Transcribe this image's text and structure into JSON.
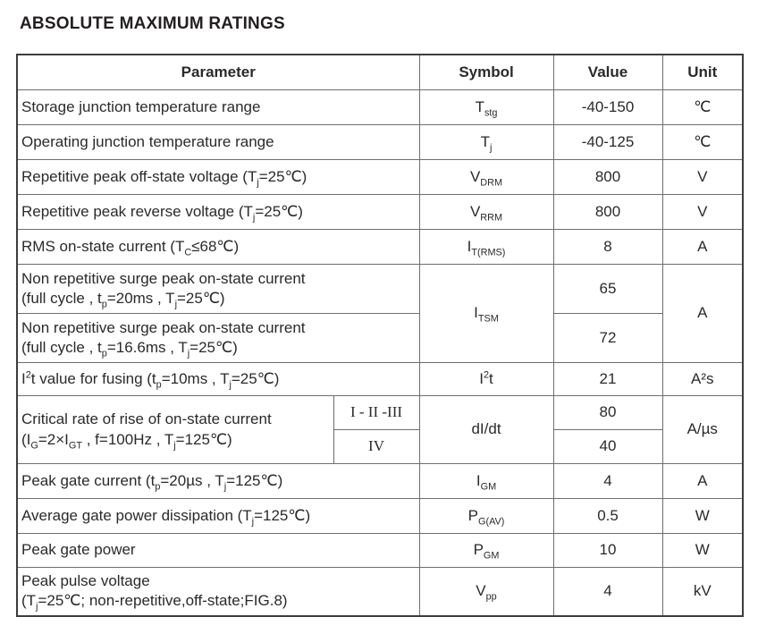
{
  "title": "ABSOLUTE MAXIMUM RATINGS",
  "table": {
    "headers": [
      "Parameter",
      "Symbol",
      "Value",
      "Unit"
    ],
    "rows": [
      {
        "param": [
          {
            "t": "Storage junction temperature range"
          }
        ],
        "symbol": [
          {
            "t": "T"
          },
          {
            "sub": "stg"
          }
        ],
        "value": "-40-150",
        "unit": "℃"
      },
      {
        "param": [
          {
            "t": "Operating junction temperature range"
          }
        ],
        "symbol": [
          {
            "t": "T"
          },
          {
            "sub": "j"
          }
        ],
        "value": "-40-125",
        "unit": "℃"
      },
      {
        "param": [
          {
            "t": "Repetitive peak off-state voltage (T"
          },
          {
            "sub": "j"
          },
          {
            "t": "=25℃)"
          }
        ],
        "symbol": [
          {
            "t": "V"
          },
          {
            "sub": "DRM"
          }
        ],
        "value": "800",
        "unit": "V"
      },
      {
        "param": [
          {
            "t": "Repetitive peak reverse voltage (T"
          },
          {
            "sub": "j"
          },
          {
            "t": "=25℃)"
          }
        ],
        "symbol": [
          {
            "t": "V"
          },
          {
            "sub": "RRM"
          }
        ],
        "value": "800",
        "unit": "V"
      },
      {
        "param": [
          {
            "t": "RMS on-state current (T"
          },
          {
            "sub": "C"
          },
          {
            "t": "≤68℃)"
          }
        ],
        "symbol": [
          {
            "t": "I"
          },
          {
            "sub": "T(RMS)"
          }
        ],
        "value": "8",
        "unit": "A"
      },
      {
        "param_a": [
          {
            "t": "Non repetitive surge peak on-state current"
          },
          {
            "br": true
          },
          {
            "t": "(full cycle , t"
          },
          {
            "sub": "p"
          },
          {
            "t": "=20ms , T"
          },
          {
            "sub": "j"
          },
          {
            "t": "=25℃)"
          }
        ],
        "param_b": [
          {
            "t": "Non repetitive surge peak on-state current"
          },
          {
            "br": true
          },
          {
            "t": "(full cycle , t"
          },
          {
            "sub": "p"
          },
          {
            "t": "=16.6ms , T"
          },
          {
            "sub": "j"
          },
          {
            "t": "=25℃)"
          }
        ],
        "symbol": [
          {
            "t": "I"
          },
          {
            "sub": "TSM"
          }
        ],
        "value_a": "65",
        "value_b": "72",
        "unit": "A"
      },
      {
        "param": [
          {
            "t": "I"
          },
          {
            "sup": "2"
          },
          {
            "t": "t value for fusing (t"
          },
          {
            "sub": "p"
          },
          {
            "t": "=10ms , T"
          },
          {
            "sub": "j"
          },
          {
            "t": "=25℃)"
          }
        ],
        "symbol": [
          {
            "t": "I"
          },
          {
            "sup": "2"
          },
          {
            "t": "t"
          }
        ],
        "value": "21",
        "unit": "A²s"
      },
      {
        "param": [
          {
            "t": "Critical rate of rise of on-state current"
          },
          {
            "br": true
          },
          {
            "t": "(I"
          },
          {
            "sub": "G"
          },
          {
            "t": "=2×I"
          },
          {
            "sub": "GT"
          },
          {
            "t": " , f=100Hz , T"
          },
          {
            "sub": "j"
          },
          {
            "t": "=125℃)"
          }
        ],
        "class_a": "I - II -III",
        "class_b": "IV",
        "symbol": [
          {
            "t": "dI/dt"
          }
        ],
        "value_a": "80",
        "value_b": "40",
        "unit": "A/µs"
      },
      {
        "param": [
          {
            "t": "Peak gate current (t"
          },
          {
            "sub": "p"
          },
          {
            "t": "=20µs , T"
          },
          {
            "sub": "j"
          },
          {
            "t": "=125℃)"
          }
        ],
        "symbol": [
          {
            "t": "I"
          },
          {
            "sub": "GM"
          }
        ],
        "value": "4",
        "unit": "A"
      },
      {
        "param": [
          {
            "t": "Average gate power dissipation (T"
          },
          {
            "sub": "j"
          },
          {
            "t": "=125℃)"
          }
        ],
        "symbol": [
          {
            "t": "P"
          },
          {
            "sub": "G(AV)"
          }
        ],
        "value": "0.5",
        "unit": "W"
      },
      {
        "param": [
          {
            "t": "Peak gate power"
          }
        ],
        "symbol": [
          {
            "t": "P"
          },
          {
            "sub": "GM"
          }
        ],
        "value": "10",
        "unit": "W"
      },
      {
        "param": [
          {
            "t": "Peak pulse voltage"
          },
          {
            "br": true
          },
          {
            "t": "(T"
          },
          {
            "sub": "j"
          },
          {
            "t": "=25℃; non-repetitive,off-state;FIG.8)"
          }
        ],
        "symbol": [
          {
            "t": "V"
          },
          {
            "sub": "pp"
          }
        ],
        "value": "4",
        "unit": "kV"
      }
    ]
  }
}
